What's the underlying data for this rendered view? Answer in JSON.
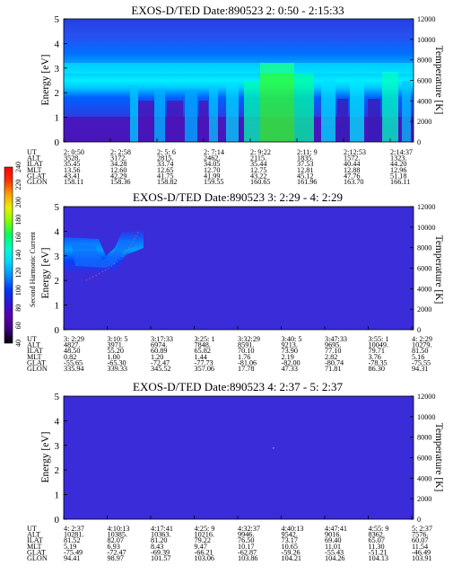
{
  "colors": {
    "colorbar": [
      "#000000",
      "#3a007a",
      "#5a00b0",
      "#2a18d8",
      "#0038ff",
      "#0090ff",
      "#00d8ff",
      "#00ffc8",
      "#00ff60",
      "#80ff00",
      "#e8f000",
      "#ffa000",
      "#ff3000",
      "#ff0000"
    ],
    "background_low": "#3a2cd8"
  },
  "colorbar": {
    "label": "Second Harmonic Current",
    "ticks": [
      "40",
      "60",
      "80",
      "100",
      "120",
      "140",
      "160",
      "180",
      "200",
      "220",
      "240"
    ]
  },
  "panels": [
    {
      "title": "EXOS-D/TED   Date:890523  2: 0:50 - 2:15:33",
      "ylabel": "Energy [eV]",
      "y2label": "Temperature [K]",
      "yticks": [
        "0",
        "1",
        "2",
        "3",
        "4",
        "5"
      ],
      "y2ticks": [
        "0",
        "2000",
        "4000",
        "6000",
        "8000",
        "10000",
        "12000"
      ],
      "ylim": [
        0,
        5
      ],
      "y2lim": [
        0,
        12000
      ],
      "table": {
        "row_labels": [
          "UT",
          "ALT",
          "ILAT",
          "MLT",
          "GLAT",
          "GLON"
        ],
        "columns": [
          [
            "2: 0:50",
            "3528.",
            "35.45",
            "13.56",
            "43.41",
            "158.11"
          ],
          [
            "2: 2:58",
            "3172.",
            "34.28",
            "12.60",
            "42.29",
            "158.36"
          ],
          [
            "2: 5: 6",
            "2815.",
            "33.74",
            "12.65",
            "41.75",
            "158.82"
          ],
          [
            "2: 7:14",
            "2462.",
            "34.05",
            "12.70",
            "41.99",
            "159.55"
          ],
          [
            "2: 9:22",
            "2115.",
            "35.44",
            "12.75",
            "43.22",
            "160.65"
          ],
          [
            "2:11: 9",
            "1835.",
            "37.53",
            "12.81",
            "45.12",
            "161.96"
          ],
          [
            "2:12:53",
            "1572.",
            "40.44",
            "12.88",
            "47.76",
            "163.70"
          ],
          [
            "2:14:37",
            "1323.",
            "44.20",
            "12.96",
            "51.18",
            "166.11"
          ]
        ]
      }
    },
    {
      "title": "EXOS-D/TED   Date:890523  3: 2:29 - 4: 2:29",
      "ylabel": "Energy [eV]",
      "y2label": "Temperature [K]",
      "yticks": [
        "0",
        "1",
        "2",
        "3",
        "4",
        "5"
      ],
      "y2ticks": [
        "0",
        "2000",
        "4000",
        "6000",
        "8000",
        "10000",
        "12000"
      ],
      "ylim": [
        0,
        5
      ],
      "y2lim": [
        0,
        12000
      ],
      "table": {
        "row_labels": [
          "UT",
          "ALT",
          "ILAT",
          "MLT",
          "GLAT",
          "GLON"
        ],
        "columns": [
          [
            "3: 2:29",
            "4827.",
            "48.50",
            "0.82",
            "-55.65",
            "335.94"
          ],
          [
            "3:10: 5",
            "3971.",
            "55.20",
            "1.00",
            "-65.30",
            "339.33"
          ],
          [
            "3:17:33",
            "6974.",
            "60.89",
            "1.20",
            "-72.47",
            "345.52"
          ],
          [
            "3:25: 1",
            "7848.",
            "65.82",
            "1.44",
            "-77.73",
            "357.06"
          ],
          [
            "3:32:29",
            "8591.",
            "70.10",
            "1.76",
            "-81.06",
            "17.78"
          ],
          [
            "3:40: 5",
            "9213.",
            "73.90",
            "2.19",
            "-82.00",
            "47.33"
          ],
          [
            "3:47:33",
            "9695.",
            "77.10",
            "2.82",
            "-80.74",
            "71.81"
          ],
          [
            "3:55: 1",
            "10049.",
            "79.71",
            "3.76",
            "-78.35",
            "86.30"
          ],
          [
            "4: 2:29",
            "10279.",
            "81.50",
            "5.16",
            "-75.55",
            "94.31"
          ]
        ]
      }
    },
    {
      "title": "EXOS-D/TED   Date:890523  4: 2:37 - 5: 2:37",
      "ylabel": "Energy [eV]",
      "y2label": "Temperature [K]",
      "yticks": [
        "0",
        "1",
        "2",
        "3",
        "4",
        "5"
      ],
      "y2ticks": [
        "0",
        "2000",
        "4000",
        "6000",
        "8000",
        "10000",
        "12000"
      ],
      "ylim": [
        0,
        5
      ],
      "y2lim": [
        0,
        12000
      ],
      "table": {
        "row_labels": [
          "UT",
          "ALT",
          "ILAT",
          "MLT",
          "GLAT",
          "GLON"
        ],
        "columns": [
          [
            "4: 2:37",
            "10281.",
            "81.52",
            "5.19",
            "-75.49",
            "94.41"
          ],
          [
            "4:10:13",
            "10385.",
            "82.07",
            "6.93",
            "-72.47",
            "98.97"
          ],
          [
            "4:17:41",
            "10363.",
            "81.20",
            "8.43",
            "-69.39",
            "101.57"
          ],
          [
            "4:25: 9",
            "10216.",
            "79.22",
            "9.47",
            "-66.21",
            "103.06"
          ],
          [
            "4:32:37",
            "9946.",
            "76.50",
            "10.17",
            "-62.87",
            "103.86"
          ],
          [
            "4:40:13",
            "9542.",
            "73.17",
            "10.65",
            "-59.26",
            "104.21"
          ],
          [
            "4:47:41",
            "9016.",
            "69.40",
            "11.01",
            "-55.43",
            "104.26"
          ],
          [
            "4:55: 9",
            "8362.",
            "65.07",
            "11.30",
            "-51.21",
            "104.13"
          ],
          [
            "5: 2:37",
            "7576.",
            "60.07",
            "11.54",
            "-46.49",
            "103.91"
          ]
        ]
      }
    }
  ],
  "chart_data": [
    {
      "type": "heatmap",
      "title": "EXOS-D/TED   Date:890523  2: 0:50 - 2:15:33",
      "ylabel": "Energy [eV]",
      "y2label": "Temperature [K]",
      "ylim": [
        0,
        5
      ],
      "y2lim": [
        0,
        12000
      ],
      "x": [
        "2: 0:50",
        "2: 2:58",
        "2: 5: 6",
        "2: 7:14",
        "2: 9:22",
        "2:11: 9",
        "2:12:53",
        "2:14:37"
      ]
    },
    {
      "type": "heatmap",
      "title": "EXOS-D/TED   Date:890523  3: 2:29 - 4: 2:29",
      "ylabel": "Energy [eV]",
      "y2label": "Temperature [K]",
      "ylim": [
        0,
        5
      ],
      "y2lim": [
        0,
        12000
      ],
      "x": [
        "3: 2:29",
        "3:10: 5",
        "3:17:33",
        "3:25: 1",
        "3:32:29",
        "3:40: 5",
        "3:47:33",
        "3:55: 1",
        "4: 2:29"
      ]
    },
    {
      "type": "heatmap",
      "title": "EXOS-D/TED   Date:890523  4: 2:37 - 5: 2:37",
      "ylabel": "Energy [eV]",
      "y2label": "Temperature [K]",
      "ylim": [
        0,
        5
      ],
      "y2lim": [
        0,
        12000
      ],
      "x": [
        "4: 2:37",
        "4:10:13",
        "4:17:41",
        "4:25: 9",
        "4:32:37",
        "4:40:13",
        "4:47:41",
        "4:55: 9",
        "5: 2:37"
      ]
    }
  ]
}
